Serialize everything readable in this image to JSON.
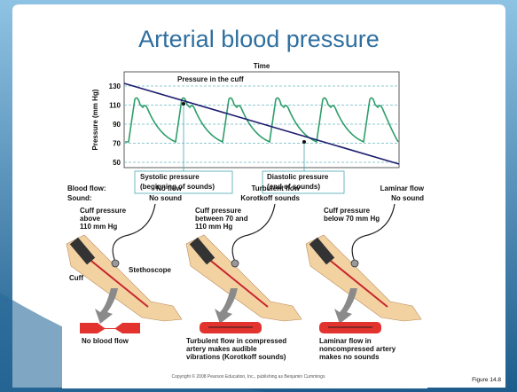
{
  "title": "Arterial blood pressure",
  "figure": {
    "chart": {
      "x_label": "Time",
      "y_label": "Pressure (mm Hg)",
      "yticks": [
        130,
        110,
        90,
        70,
        50
      ],
      "cuff_label": "Pressure in the cuff",
      "systolic": [
        "Systolic pressure",
        "(beginning of sounds)"
      ],
      "diastolic": [
        "Diastolic pressure",
        "(end of sounds)"
      ]
    },
    "row_labels": [
      "Blood flow:",
      "Sound:"
    ],
    "panels": [
      {
        "flow": "No flow",
        "sound": "No sound",
        "cuff": [
          "Cuff pressure",
          "above",
          "110 mm Hg"
        ],
        "parts": [
          "Stethoscope",
          "Cuff"
        ],
        "caption": [
          "No blood flow"
        ]
      },
      {
        "flow": "Turbulent flow",
        "sound": "Korotkoff sounds",
        "cuff": [
          "Cuff pressure",
          "between 70 and",
          "110 mm Hg"
        ],
        "caption": [
          "Turbulent flow in compressed",
          "artery makes audible",
          "vibrations (Korotkoff sounds)"
        ]
      },
      {
        "flow": "Laminar flow",
        "sound": "No sound",
        "cuff": [
          "Cuff pressure",
          "below 70 mm Hg"
        ],
        "caption": [
          "Laminar flow in",
          "noncompressed artery",
          "makes no sounds"
        ]
      }
    ],
    "copyright": "Copyright © 2008 Pearson Education, Inc., publishing as Benjamin Cummings"
  },
  "figure_number": "Figure 14.8"
}
